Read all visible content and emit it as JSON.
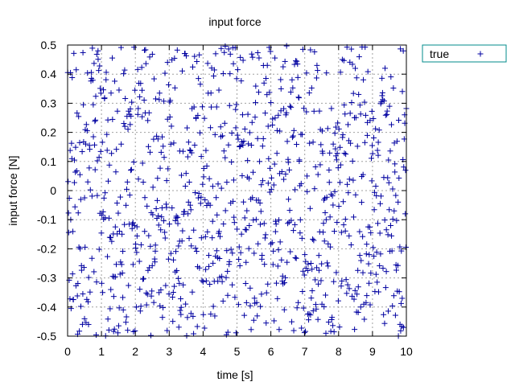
{
  "chart_data": {
    "type": "scatter",
    "title": "input force",
    "xlabel": "time [s]",
    "ylabel": "input force [N]",
    "xlim": [
      0,
      10
    ],
    "ylim": [
      -0.5,
      0.5
    ],
    "xticks": [
      "0",
      "1",
      "2",
      "3",
      "4",
      "5",
      "6",
      "7",
      "8",
      "9",
      "10"
    ],
    "yticks": [
      "0.5",
      "0.4",
      "0.3",
      "0.2",
      "0.1",
      "0",
      "-0.1",
      "-0.2",
      "-0.3",
      "-0.4",
      "-0.5"
    ],
    "grid": true,
    "legend_position": "outside-top-right",
    "series": [
      {
        "name": "true",
        "marker": "plus",
        "color": "#0000a0",
        "distribution": "uniform random in [-0.5, 0.5]",
        "n_points": 1000,
        "x_range": [
          0,
          10
        ]
      }
    ]
  }
}
